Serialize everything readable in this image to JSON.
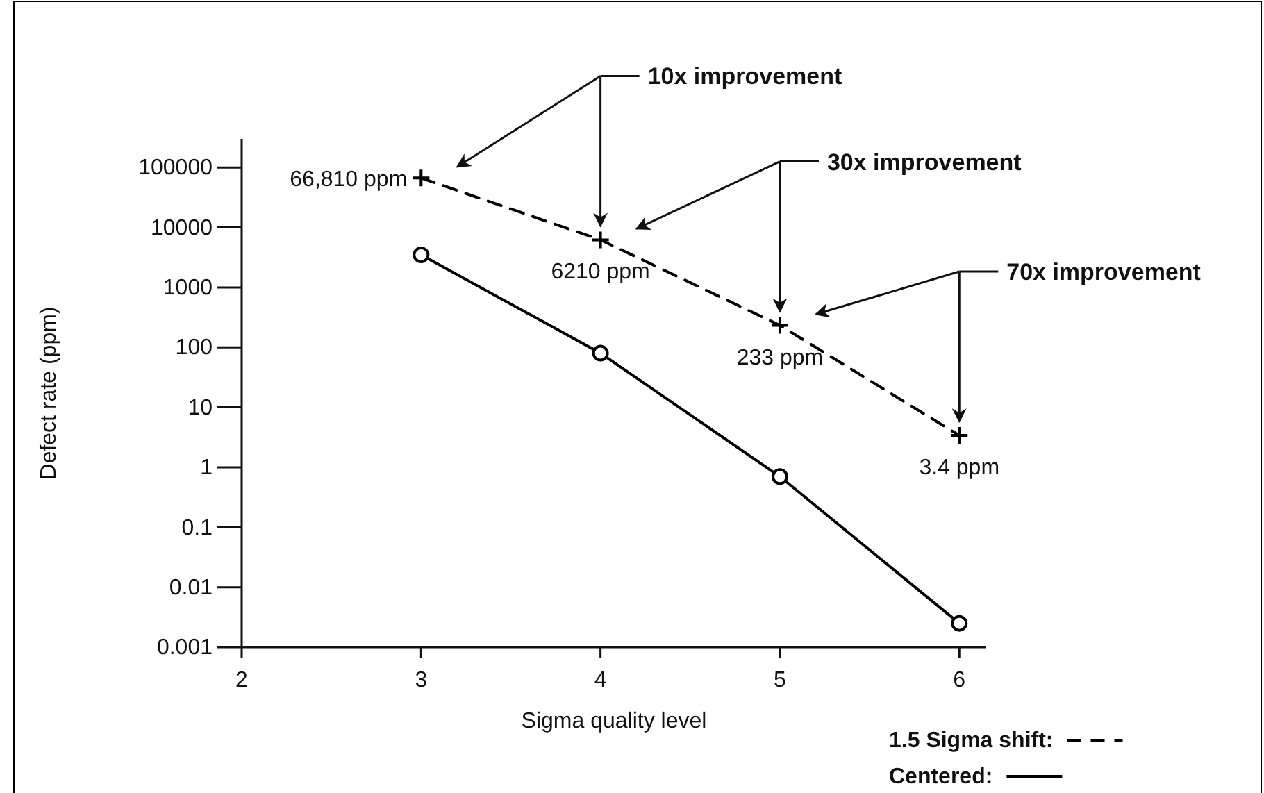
{
  "chart_data": {
    "type": "line",
    "xlabel": "Sigma quality level",
    "ylabel": "Defect rate (ppm)",
    "x": [
      3,
      4,
      5,
      6
    ],
    "series": [
      {
        "name": "1.5 Sigma shift:",
        "color": "#000000",
        "line_style": "dashed",
        "marker": "cross",
        "values": [
          66810,
          6210,
          233,
          3.4
        ],
        "value_labels": [
          "66,810 ppm",
          "6210 ppm",
          "233 ppm",
          "3.4 ppm"
        ]
      },
      {
        "name": "Centered:",
        "color": "#000000",
        "line_style": "solid",
        "marker": "circle",
        "values": [
          3500,
          80,
          0.7,
          0.0025
        ]
      }
    ],
    "annotations": [
      "10x improvement",
      "30x improvement",
      "70x improvement"
    ],
    "log": "y",
    "xlim": [
      2,
      6.15
    ],
    "xticks": [
      2,
      3,
      4,
      5,
      6
    ],
    "ylim": [
      0.001,
      300000
    ],
    "yticks": [
      {
        "value": 0.001,
        "label": "0.001"
      },
      {
        "value": 0.01,
        "label": "0.01"
      },
      {
        "value": 0.1,
        "label": "0.1"
      },
      1,
      10,
      100,
      1000,
      10000,
      100000
    ],
    "grid": false,
    "legend": "bottom right"
  }
}
